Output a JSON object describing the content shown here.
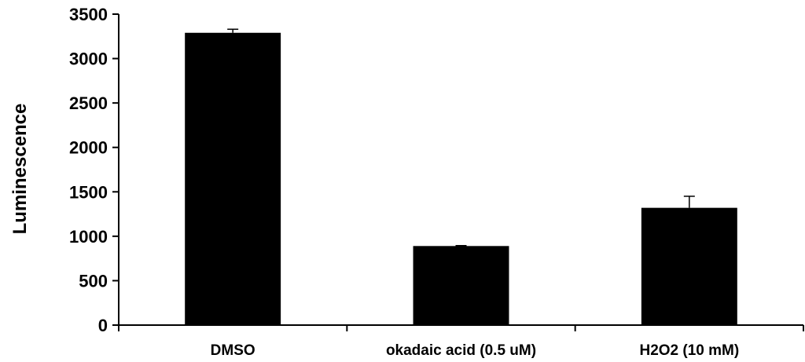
{
  "chart_data": {
    "type": "bar",
    "categories": [
      "DMSO",
      "okadaic acid (0.5 uM)",
      "H2O2 (10 mM)"
    ],
    "values": [
      3290,
      890,
      1320
    ],
    "errors": [
      40,
      5,
      130
    ],
    "xlabel": "",
    "ylabel": "Luminescence",
    "ylim": [
      0,
      3500
    ],
    "yticks": [
      0,
      500,
      1000,
      1500,
      2000,
      2500,
      3000,
      3500
    ],
    "grid": false,
    "legend": "none",
    "bar_color": "#000000"
  }
}
